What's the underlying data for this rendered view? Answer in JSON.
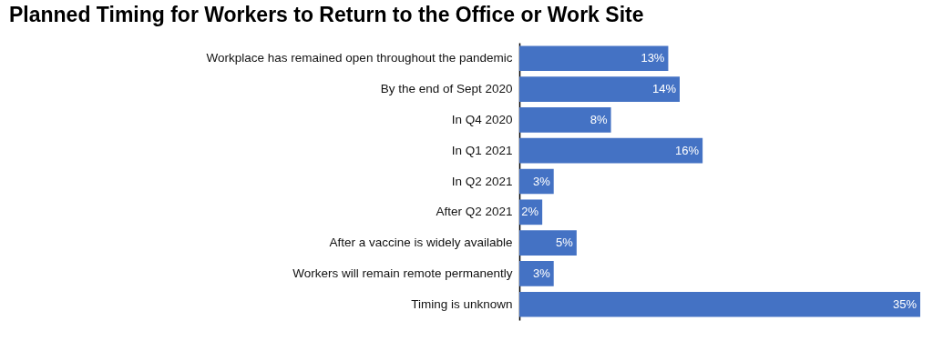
{
  "chart_data": {
    "type": "bar",
    "orientation": "horizontal",
    "title": "Planned Timing for Workers to Return to the Office or Work Site",
    "categories": [
      "Workplace has remained open throughout the pandemic",
      "By the end of Sept 2020",
      "In Q4 2020",
      "In Q1 2021",
      "In Q2 2021",
      "After Q2 2021",
      "After a vaccine is widely available",
      "Workers will remain remote permanently",
      "Timing is unknown"
    ],
    "values": [
      13,
      14,
      8,
      16,
      3,
      2,
      5,
      3,
      35
    ],
    "value_labels": [
      "13%",
      "14%",
      "8%",
      "16%",
      "3%",
      "2%",
      "5%",
      "3%",
      "35%"
    ],
    "color": "#4472c4"
  }
}
